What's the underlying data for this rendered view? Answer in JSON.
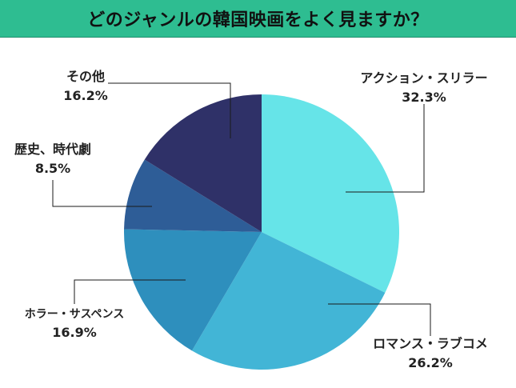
{
  "title": "どのジャンルの韓国映画をよく見ますか？",
  "chart_data": {
    "type": "pie",
    "start_angle_deg": 0,
    "direction": "clockwise",
    "slices": [
      {
        "label": "アクション・スリラー",
        "value": 32.3,
        "value_label": "32.3%",
        "color": "#66e4e8"
      },
      {
        "label": "ロマンス・ラブコメ",
        "value": 26.2,
        "value_label": "26.2%",
        "color": "#42b5d6"
      },
      {
        "label": "ホラー・サスペンス",
        "value": 16.9,
        "value_label": "16.9%",
        "color": "#2e8fbd"
      },
      {
        "label": "歴史、時代劇",
        "value": 8.5,
        "value_label": "8.5%",
        "color": "#2e5d97"
      },
      {
        "label": "その他",
        "value": 16.2,
        "value_label": "16.2%",
        "color": "#2f3168"
      }
    ],
    "legend": "none"
  }
}
